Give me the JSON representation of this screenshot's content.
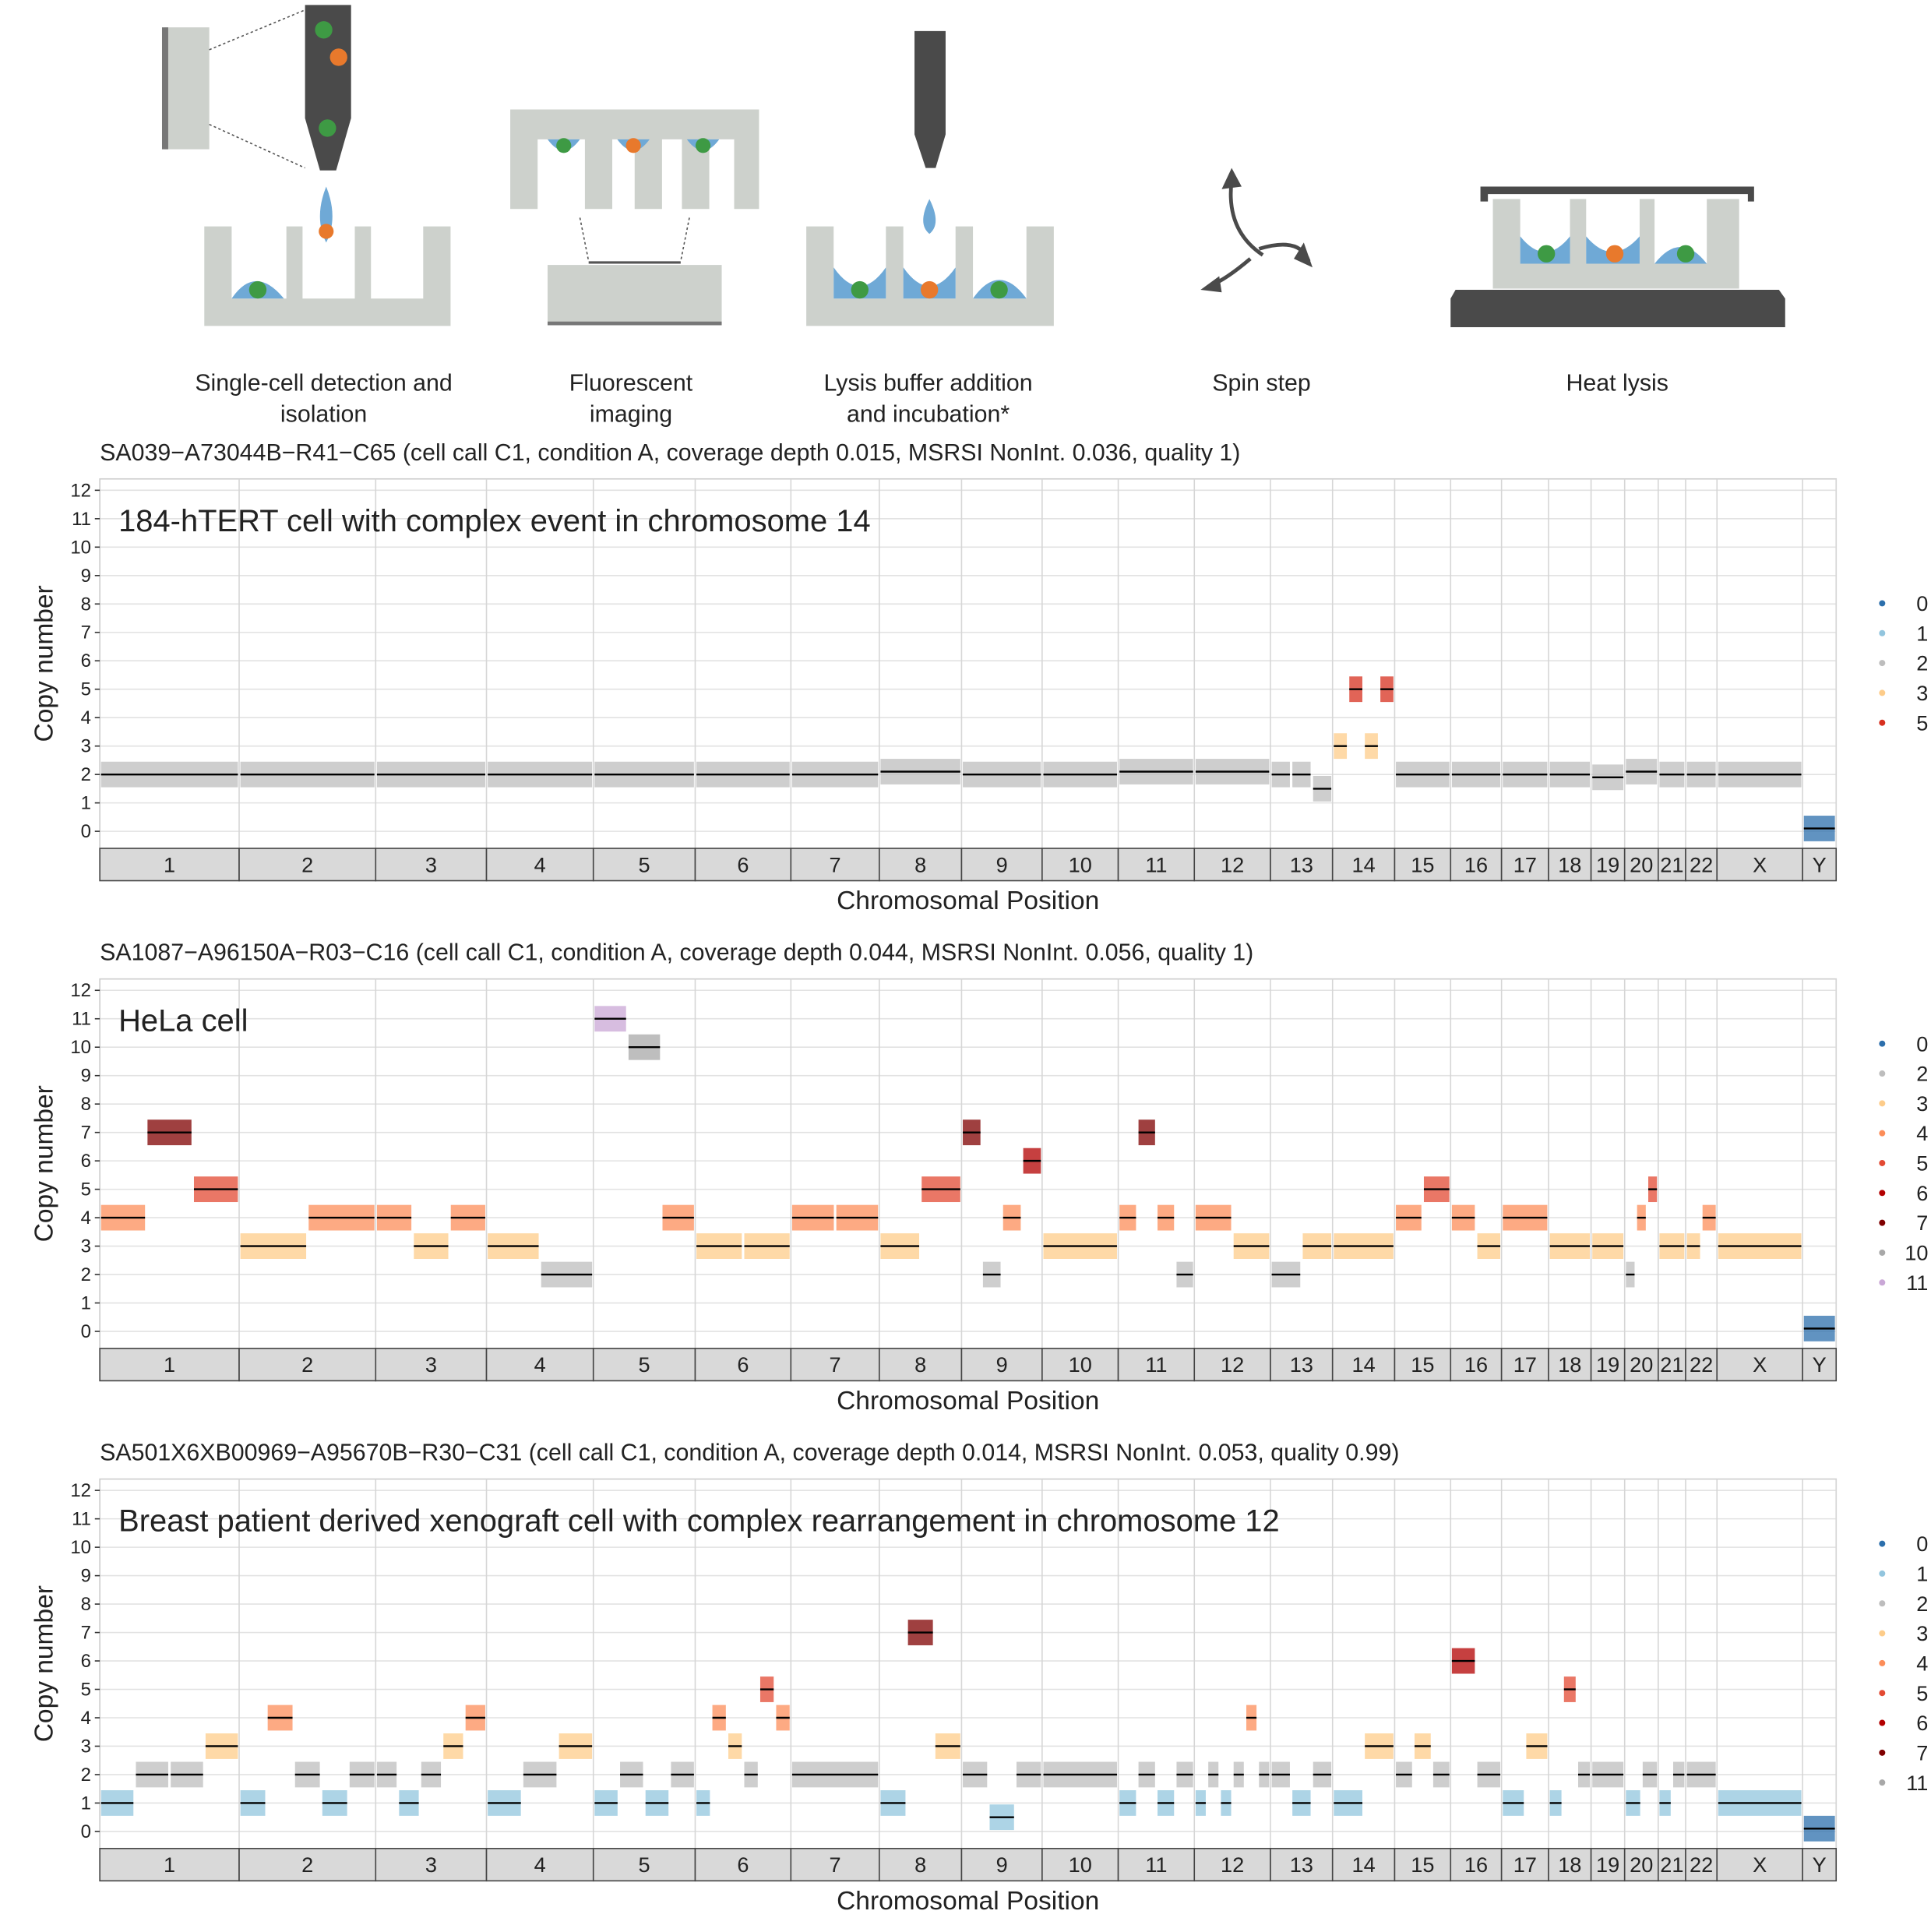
{
  "diagram": {
    "steps": [
      "Single-cell detection and",
      "isolation",
      "Fluorescent",
      "imaging",
      "Lysis buffer addition",
      "and incubation*",
      "Spin step",
      "Heat lysis"
    ]
  },
  "chart_data": [
    {
      "type": "segments",
      "title": "SA039−A73044B−R41−C65 (cell call C1, condition A, coverage depth 0.015, MSRSI NonInt. 0.036, quality 1)",
      "annotation": "184-hTERT cell with complex event in chromosome 14",
      "y_label": "Copy number",
      "x_label": "Chromosomal Position",
      "ylim": [
        -0.6,
        12.4
      ],
      "yticks": [
        0,
        1,
        2,
        3,
        4,
        5,
        6,
        7,
        8,
        9,
        10,
        11,
        12
      ],
      "grid": true,
      "chromosomes": [
        "1",
        "2",
        "3",
        "4",
        "5",
        "6",
        "7",
        "8",
        "9",
        "10",
        "11",
        "12",
        "13",
        "14",
        "15",
        "16",
        "17",
        "18",
        "19",
        "20",
        "21",
        "22",
        "X",
        "Y"
      ],
      "chromosome_lengths": [
        249,
        244,
        198,
        191,
        182,
        171,
        158,
        147,
        144,
        136,
        136,
        136,
        111,
        111,
        100,
        91,
        84,
        76,
        60,
        60,
        49,
        56,
        153,
        60
      ],
      "segments": [
        [
          2
        ],
        [
          2
        ],
        [
          2
        ],
        [
          2
        ],
        [
          2
        ],
        [
          2
        ],
        [
          2
        ],
        [
          2.1
        ],
        [
          2
        ],
        [
          2
        ],
        [
          2.1
        ],
        [
          2.1
        ],
        [
          2,
          2,
          1.5
        ],
        [
          3,
          5,
          3,
          5
        ],
        [
          2
        ],
        [
          2
        ],
        [
          2
        ],
        [
          2
        ],
        [
          1.9
        ],
        [
          2.1
        ],
        [
          2
        ],
        [
          2
        ],
        [
          2
        ],
        [
          0.1
        ]
      ],
      "legend": [
        {
          "name": "0",
          "color": "#2c6fac"
        },
        {
          "name": "1",
          "color": "#92c5de"
        },
        {
          "name": "2",
          "color": "#bdbdbd"
        },
        {
          "name": "3",
          "color": "#fdcc8a"
        },
        {
          "name": "5",
          "color": "#d7301f"
        }
      ]
    },
    {
      "type": "segments",
      "title": "SA1087−A96150A−R03−C16 (cell call C1, condition A, coverage depth 0.044, MSRSI NonInt. 0.056, quality 1)",
      "annotation": "HeLa cell",
      "y_label": "Copy number",
      "x_label": "Chromosomal Position",
      "ylim": [
        -0.6,
        12.4
      ],
      "yticks": [
        0,
        1,
        2,
        3,
        4,
        5,
        6,
        7,
        8,
        9,
        10,
        11,
        12
      ],
      "grid": true,
      "chromosomes": [
        "1",
        "2",
        "3",
        "4",
        "5",
        "6",
        "7",
        "8",
        "9",
        "10",
        "11",
        "12",
        "13",
        "14",
        "15",
        "16",
        "17",
        "18",
        "19",
        "20",
        "21",
        "22",
        "X",
        "Y"
      ],
      "chromosome_lengths": [
        249,
        244,
        198,
        191,
        182,
        171,
        158,
        147,
        144,
        136,
        136,
        136,
        111,
        111,
        100,
        91,
        84,
        76,
        60,
        60,
        49,
        56,
        153,
        60
      ],
      "segments": [
        [
          4,
          7,
          5
        ],
        [
          3,
          4
        ],
        [
          4,
          3,
          4
        ],
        [
          3,
          2
        ],
        [
          11,
          10,
          4
        ],
        [
          3,
          3
        ],
        [
          4,
          4
        ],
        [
          3,
          5
        ],
        [
          7,
          2,
          4,
          6
        ],
        [
          3
        ],
        [
          4,
          7,
          4,
          2
        ],
        [
          4,
          3
        ],
        [
          2,
          3
        ],
        [
          3
        ],
        [
          4,
          5
        ],
        [
          4,
          3
        ],
        [
          4
        ],
        [
          3
        ],
        [
          3
        ],
        [
          2,
          4,
          5
        ],
        [
          3
        ],
        [
          3,
          4
        ],
        [
          3
        ],
        [
          0.1
        ]
      ],
      "legend": [
        {
          "name": "0",
          "color": "#2c6fac"
        },
        {
          "name": "2",
          "color": "#bdbdbd"
        },
        {
          "name": "3",
          "color": "#fdcc8a"
        },
        {
          "name": "4",
          "color": "#fc8d59"
        },
        {
          "name": "5",
          "color": "#e34a33"
        },
        {
          "name": "6",
          "color": "#b30000"
        },
        {
          "name": "7",
          "color": "#7f0000"
        },
        {
          "name": "10",
          "color": "#a8a8a8"
        },
        {
          "name": "11",
          "color": "#c9a7d6"
        }
      ]
    },
    {
      "type": "segments",
      "title": "SA501X6XB00969−A95670B−R30−C31 (cell call C1, condition A, coverage depth 0.014, MSRSI NonInt. 0.053, quality 0.99)",
      "annotation": "Breast patient derived xenograft cell with complex rearrangement in chromosome 12",
      "y_label": "Copy number",
      "x_label": "Chromosomal Position",
      "ylim": [
        -0.6,
        12.4
      ],
      "yticks": [
        0,
        1,
        2,
        3,
        4,
        5,
        6,
        7,
        8,
        9,
        10,
        11,
        12
      ],
      "grid": true,
      "chromosomes": [
        "1",
        "2",
        "3",
        "4",
        "5",
        "6",
        "7",
        "8",
        "9",
        "10",
        "11",
        "12",
        "13",
        "14",
        "15",
        "16",
        "17",
        "18",
        "19",
        "20",
        "21",
        "22",
        "X",
        "Y"
      ],
      "chromosome_lengths": [
        249,
        244,
        198,
        191,
        182,
        171,
        158,
        147,
        144,
        136,
        136,
        136,
        111,
        111,
        100,
        91,
        84,
        76,
        60,
        60,
        49,
        56,
        153,
        60
      ],
      "segments": [
        [
          1,
          2,
          2,
          3
        ],
        [
          1,
          4,
          2,
          1,
          2
        ],
        [
          2,
          1,
          2,
          3,
          4
        ],
        [
          1,
          2,
          3
        ],
        [
          1,
          2,
          1,
          2
        ],
        [
          1,
          4,
          3,
          2,
          5,
          4
        ],
        [
          2
        ],
        [
          1,
          7,
          3
        ],
        [
          2,
          0.5,
          2
        ],
        [
          2
        ],
        [
          1,
          2,
          1,
          2
        ],
        [
          1,
          2,
          1,
          2,
          4,
          2
        ],
        [
          2,
          1,
          2
        ],
        [
          1,
          3
        ],
        [
          2,
          3,
          2
        ],
        [
          6,
          2
        ],
        [
          1,
          3
        ],
        [
          1,
          5,
          2
        ],
        [
          2
        ],
        [
          1,
          2
        ],
        [
          1,
          2
        ],
        [
          2
        ],
        [
          1
        ],
        [
          0.1
        ]
      ],
      "legend": [
        {
          "name": "0",
          "color": "#2c6fac"
        },
        {
          "name": "1",
          "color": "#92c5de"
        },
        {
          "name": "2",
          "color": "#bdbdbd"
        },
        {
          "name": "3",
          "color": "#fdcc8a"
        },
        {
          "name": "4",
          "color": "#fc8d59"
        },
        {
          "name": "5",
          "color": "#e34a33"
        },
        {
          "name": "6",
          "color": "#b30000"
        },
        {
          "name": "7",
          "color": "#7f0000"
        },
        {
          "name": "11",
          "color": "#a8a8a8"
        }
      ]
    }
  ]
}
